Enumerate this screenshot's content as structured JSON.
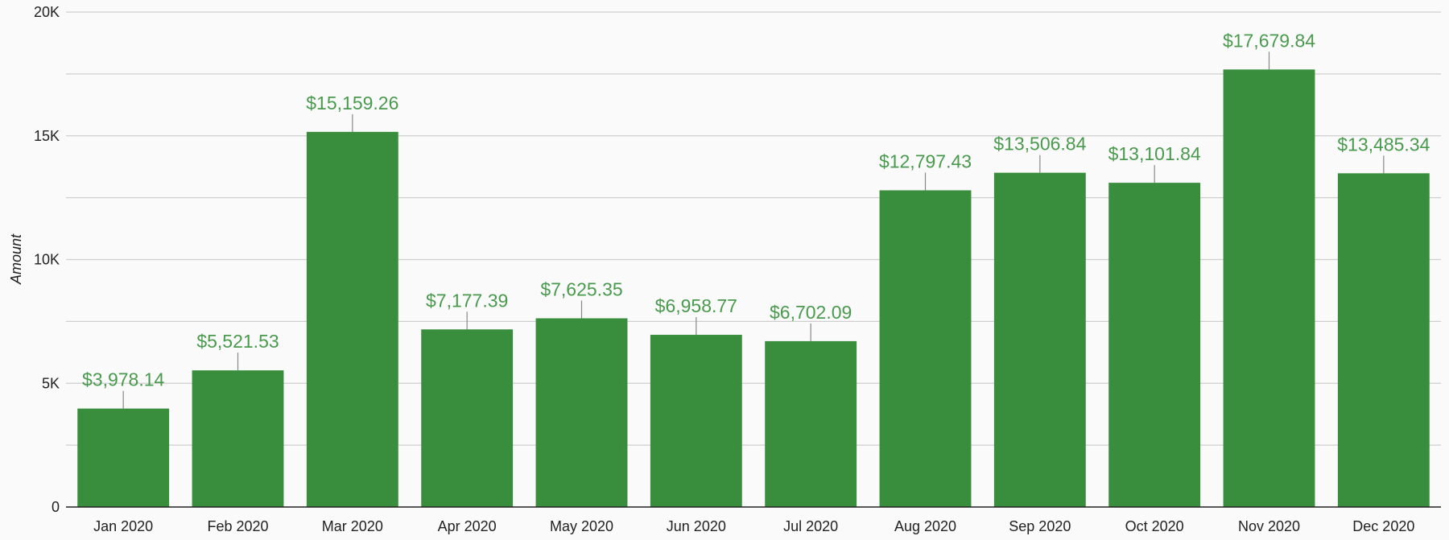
{
  "chart_data": {
    "type": "bar",
    "title": "",
    "xlabel": "",
    "ylabel": "Amount",
    "ylim": [
      0,
      20000
    ],
    "yticks": [
      0,
      5000,
      10000,
      15000,
      20000
    ],
    "ytick_labels": [
      "0",
      "5K",
      "10K",
      "15K",
      "20K"
    ],
    "grid": true,
    "grid_step": 2500,
    "legend": null,
    "bar_color": "#388e3c",
    "label_color": "#4a9a4e",
    "categories": [
      "Jan 2020",
      "Feb 2020",
      "Mar 2020",
      "Apr 2020",
      "May 2020",
      "Jun 2020",
      "Jul 2020",
      "Aug 2020",
      "Sep 2020",
      "Oct 2020",
      "Nov 2020",
      "Dec 2020"
    ],
    "values": [
      3978.14,
      5521.53,
      15159.26,
      7177.39,
      7625.35,
      6958.77,
      6702.09,
      12797.43,
      13506.84,
      13101.84,
      17679.84,
      13485.34
    ],
    "data_labels": [
      "$3,978.14",
      "$5,521.53",
      "$15,159.26",
      "$7,177.39",
      "$7,625.35",
      "$6,958.77",
      "$6,702.09",
      "$12,797.43",
      "$13,506.84",
      "$13,101.84",
      "$17,679.84",
      "$13,485.34"
    ]
  }
}
